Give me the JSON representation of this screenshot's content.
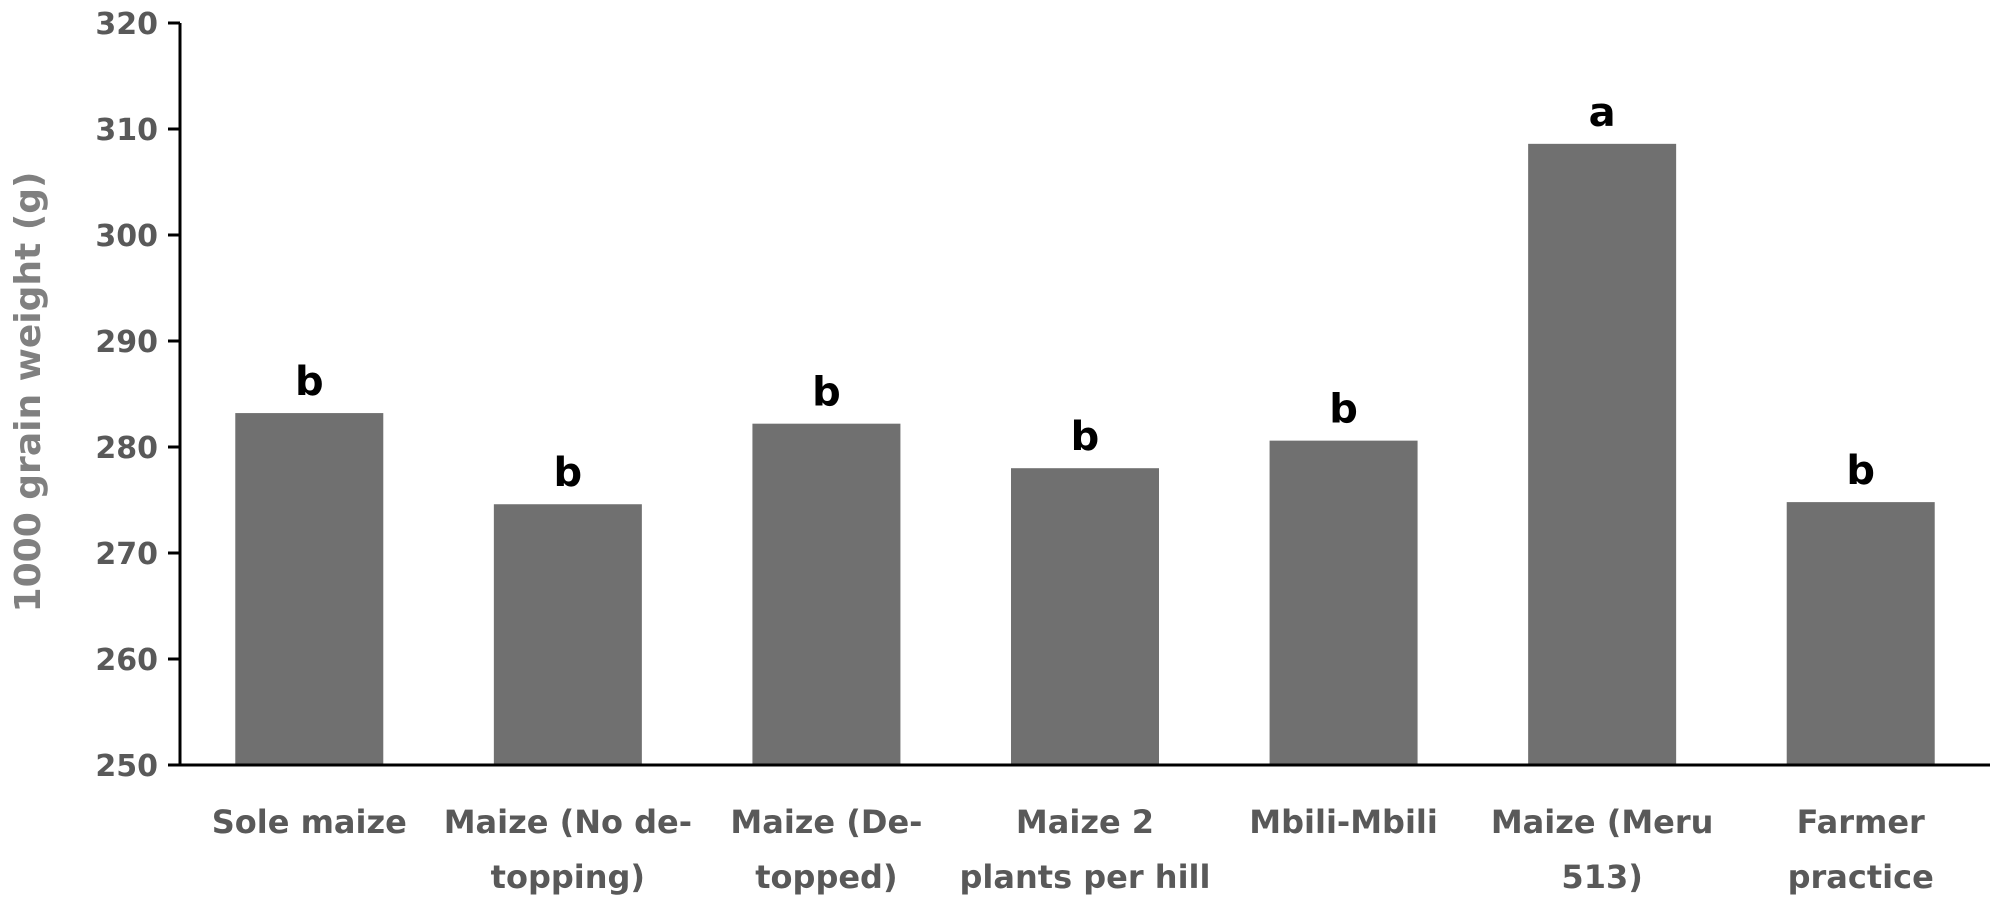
{
  "chart_data": {
    "type": "bar",
    "title": "",
    "xlabel": "",
    "ylabel": "1000 grain weight (g)",
    "ylim": [
      250,
      320
    ],
    "yticks": [
      250,
      260,
      270,
      280,
      290,
      300,
      310,
      320
    ],
    "grid": false,
    "categories": [
      "Sole maize",
      "Maize (No de-topping)",
      "Maize (De-topped)",
      "Maize 2 plants per hill",
      "Mbili-Mbili",
      "Maize (Meru 513)",
      "Farmer practice"
    ],
    "category_lines": [
      [
        "Sole maize"
      ],
      [
        "Maize (No de-",
        "topping)"
      ],
      [
        "Maize (De-",
        "topped)"
      ],
      [
        "Maize 2",
        "plants per hill"
      ],
      [
        "Mbili-Mbili"
      ],
      [
        "Maize (Meru",
        "513)"
      ],
      [
        "Farmer",
        "practice"
      ]
    ],
    "values": [
      283.2,
      274.6,
      282.2,
      278.0,
      280.6,
      308.6,
      274.8
    ],
    "significance_letters": [
      "b",
      "b",
      "b",
      "b",
      "b",
      "a",
      "b"
    ],
    "bar_color": "#707070",
    "axis_color": "#000000"
  }
}
